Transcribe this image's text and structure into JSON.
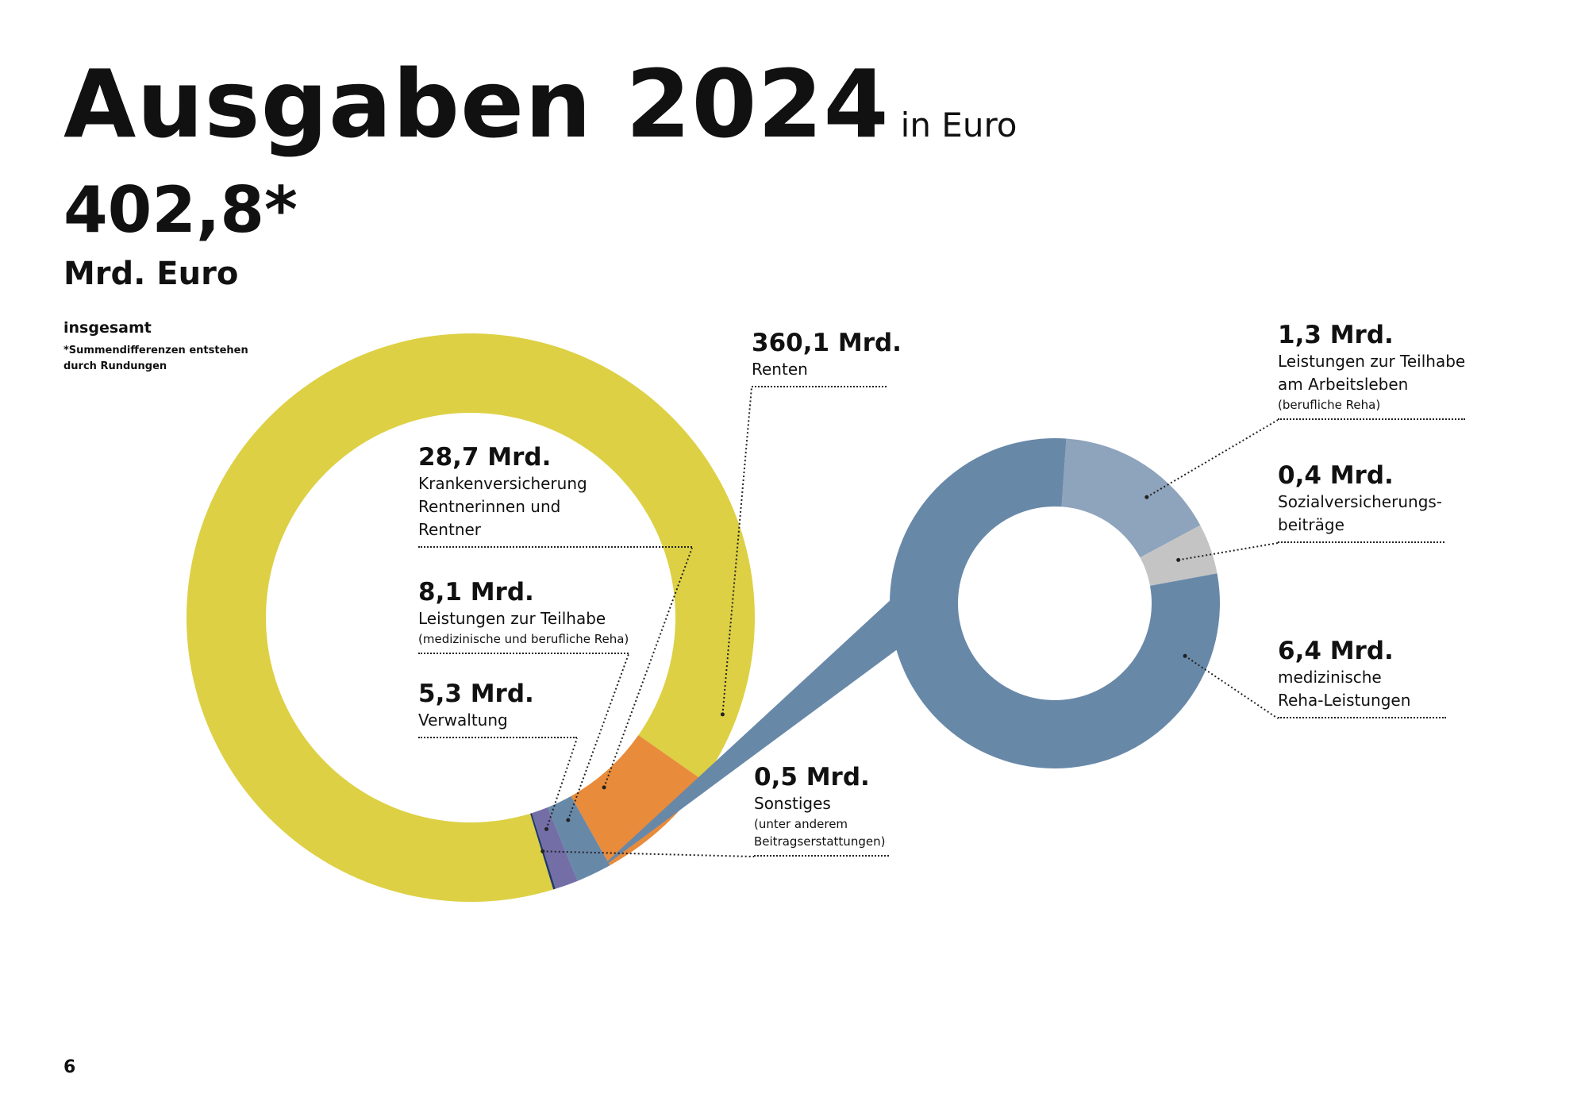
{
  "header": {
    "title": "Ausgaben 2024",
    "title_suffix": "in Euro"
  },
  "total": {
    "value": "402,8*",
    "unit": "Mrd. Euro",
    "label": "insgesamt",
    "footnote": "*Summendifferenzen entstehen durch Rundungen"
  },
  "page_number": "6",
  "colors": {
    "renten": "#ddd044",
    "krankenversicherung": "#e88b3b",
    "teilhabe": "#6888a8",
    "verwaltung": "#736ea6",
    "sonstiges": "#1f3a6a",
    "berufliche_reha": "#8ea3bc",
    "sozialversicherung": "#c4c4c4",
    "medizinische_reha": "#6888a8"
  },
  "chart_data": [
    {
      "type": "pie",
      "series": [
        {
          "labels": [
            "Renten",
            "Krankenversicherung Rentnerinnen und Rentner",
            "Leistungen zur Teilhabe",
            "Verwaltung",
            "Sonstiges"
          ],
          "values": [
            360.1,
            28.7,
            8.1,
            5.3,
            0.5
          ]
        }
      ],
      "labels": [
        {
          "value": "360,1 Mrd.",
          "lines": [
            "Renten"
          ],
          "small": []
        },
        {
          "value": "28,7 Mrd.",
          "lines": [
            "Krankenversicherung",
            "Rentnerinnen und",
            "Rentner"
          ],
          "small": []
        },
        {
          "value": "8,1 Mrd.",
          "lines": [
            "Leistungen zur Teilhabe"
          ],
          "small": [
            "(medizinische und berufliche Reha)"
          ]
        },
        {
          "value": "5,3 Mrd.",
          "lines": [
            "Verwaltung"
          ],
          "small": []
        },
        {
          "value": "0,5 Mrd.",
          "lines": [
            "Sonstiges"
          ],
          "small": [
            "(unter anderem",
            "Beitragserstattungen)"
          ]
        }
      ]
    },
    {
      "type": "pie",
      "series": [
        {
          "labels": [
            "Leistungen zur Teilhabe am Arbeitsleben (berufliche Reha)",
            "Sozialversicherungsbeiträge",
            "medizinische Reha-Leistungen"
          ],
          "values": [
            1.3,
            0.4,
            6.4
          ]
        }
      ],
      "labels": [
        {
          "value": "1,3 Mrd.",
          "lines": [
            "Leistungen zur Teilhabe",
            "am Arbeitsleben"
          ],
          "small": [
            "(berufliche Reha)"
          ]
        },
        {
          "value": "0,4 Mrd.",
          "lines": [
            "Sozialversicherungs-",
            "beiträge"
          ],
          "small": []
        },
        {
          "value": "6,4 Mrd.",
          "lines": [
            "medizinische",
            "Reha-Leistungen"
          ],
          "small": []
        }
      ]
    }
  ]
}
